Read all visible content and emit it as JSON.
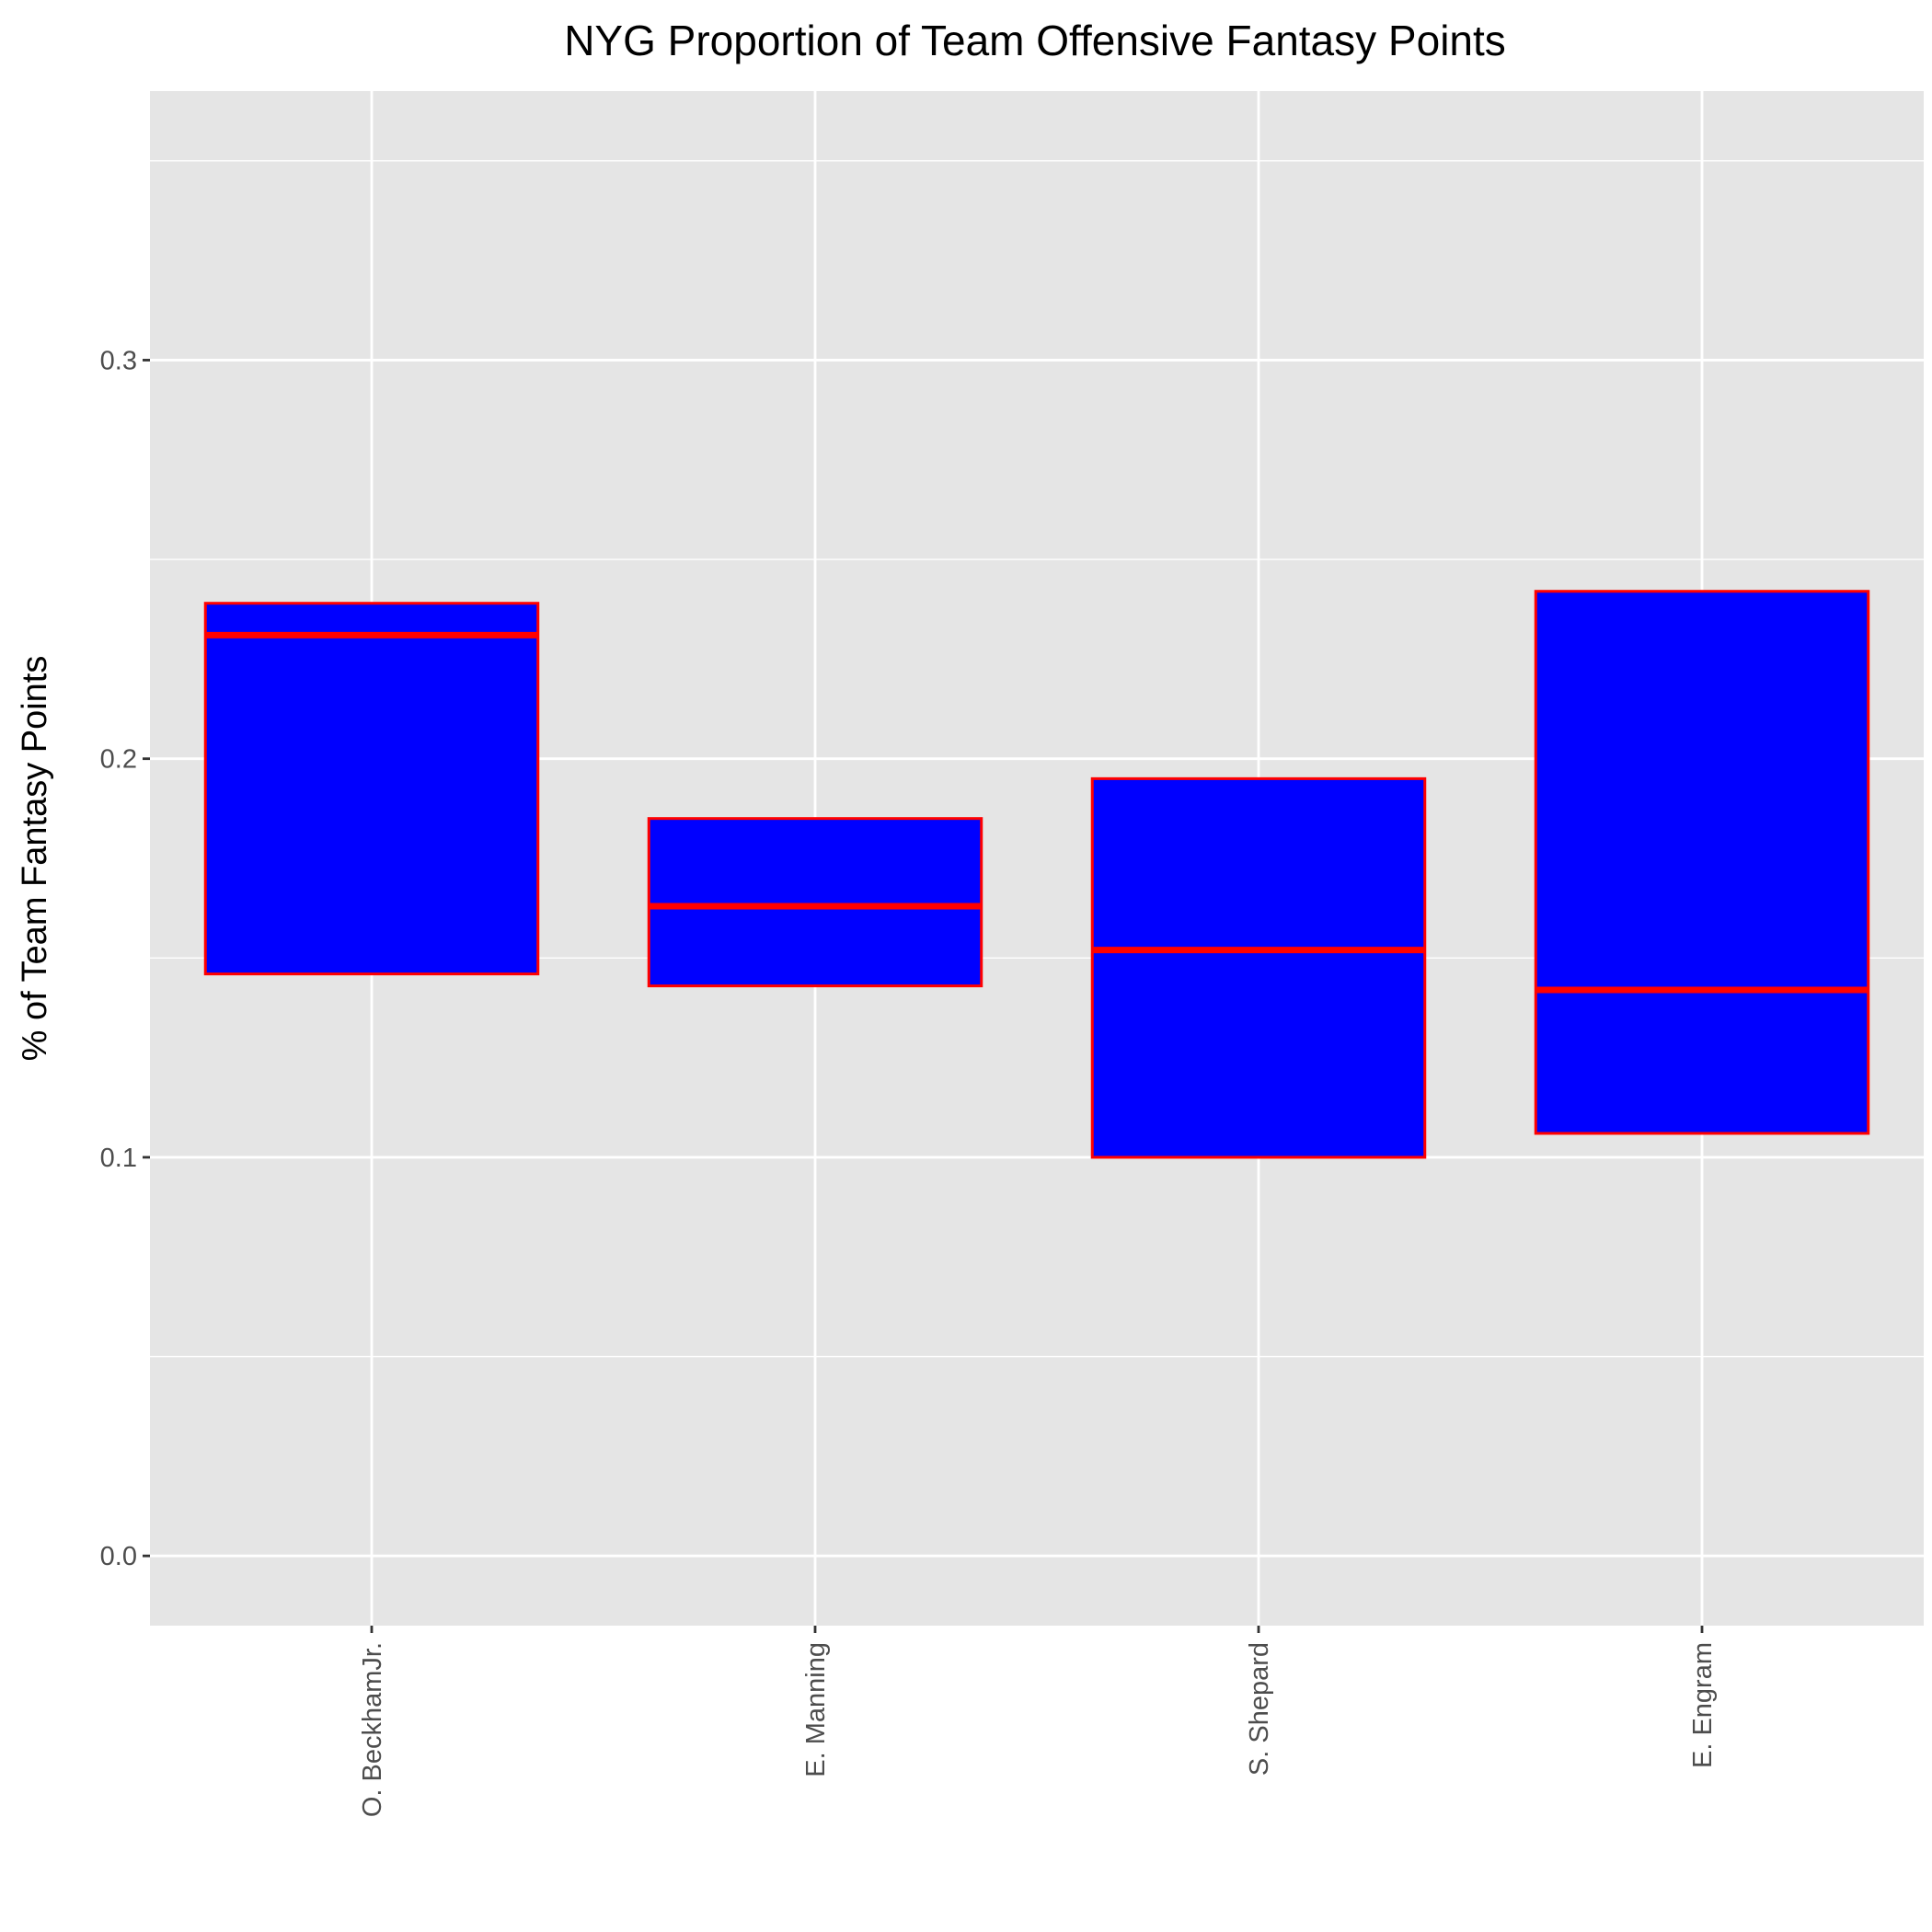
{
  "chart_data": {
    "type": "boxplot",
    "title": "NYG Proportion of Team Offensive Fantasy Points",
    "xlabel": "",
    "ylabel": "% of Team Fantasy Points",
    "categories": [
      "O. BeckhamJr.",
      "E. Manning",
      "S. Shepard",
      "E. Engram"
    ],
    "boxes": [
      {
        "category": "O. BeckhamJr.",
        "q1": 0.146,
        "median": 0.231,
        "q3": 0.239
      },
      {
        "category": "E. Manning",
        "q1": 0.143,
        "median": 0.163,
        "q3": 0.185
      },
      {
        "category": "S. Shepard",
        "q1": 0.1,
        "median": 0.152,
        "q3": 0.195
      },
      {
        "category": "E. Engram",
        "q1": 0.106,
        "median": 0.142,
        "q3": 0.242
      }
    ],
    "ylim": [
      -0.0175,
      0.3675
    ],
    "yticks": [
      "0.0",
      "0.1",
      "0.2",
      "0.3"
    ],
    "grid": true,
    "legend": "none",
    "colors": {
      "panel_background": "#e5e5e5",
      "grid": "#ffffff",
      "box_fill": "#0000ff",
      "box_outline": "#ff0000",
      "tick_text": "#4d4d4d",
      "tick_mark": "#333333"
    }
  }
}
